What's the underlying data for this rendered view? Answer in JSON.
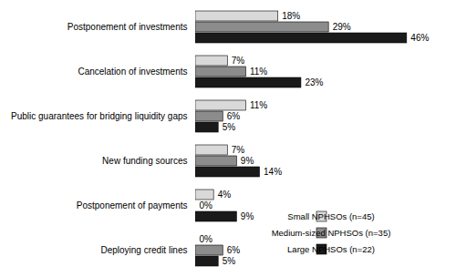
{
  "chart_data": {
    "type": "bar",
    "orientation": "horizontal",
    "categories": [
      "Postponement of investments",
      "Cancelation of investments",
      "Public guarantees for bridging liquidity gaps",
      "New funding sources",
      "Postponement of payments",
      "Deploying credit lines"
    ],
    "series": [
      {
        "name": "Small NPHSOs (n=45)",
        "color": "#d9d9d9",
        "values": [
          18,
          7,
          11,
          7,
          4,
          0
        ],
        "value_labels": [
          "18%",
          "7%",
          "11%",
          "7%",
          "4%",
          "0%"
        ]
      },
      {
        "name": "Medium-sized NPHSOs (n=35)",
        "color": "#8c8c8c",
        "values": [
          29,
          11,
          6,
          9,
          0,
          6
        ],
        "value_labels": [
          "29%",
          "11%",
          "6%",
          "9%",
          "0%",
          "6%"
        ]
      },
      {
        "name": "Large NPHSOs (n=22)",
        "color": "#1a1a1a",
        "values": [
          46,
          23,
          5,
          14,
          9,
          5
        ],
        "value_labels": [
          "46%",
          "23%",
          "5%",
          "14%",
          "9%",
          "5%"
        ]
      }
    ],
    "xlim": [
      0,
      50
    ],
    "data_labels": true,
    "tick_labels": "y",
    "legend": "bottom-right",
    "grid": false
  }
}
